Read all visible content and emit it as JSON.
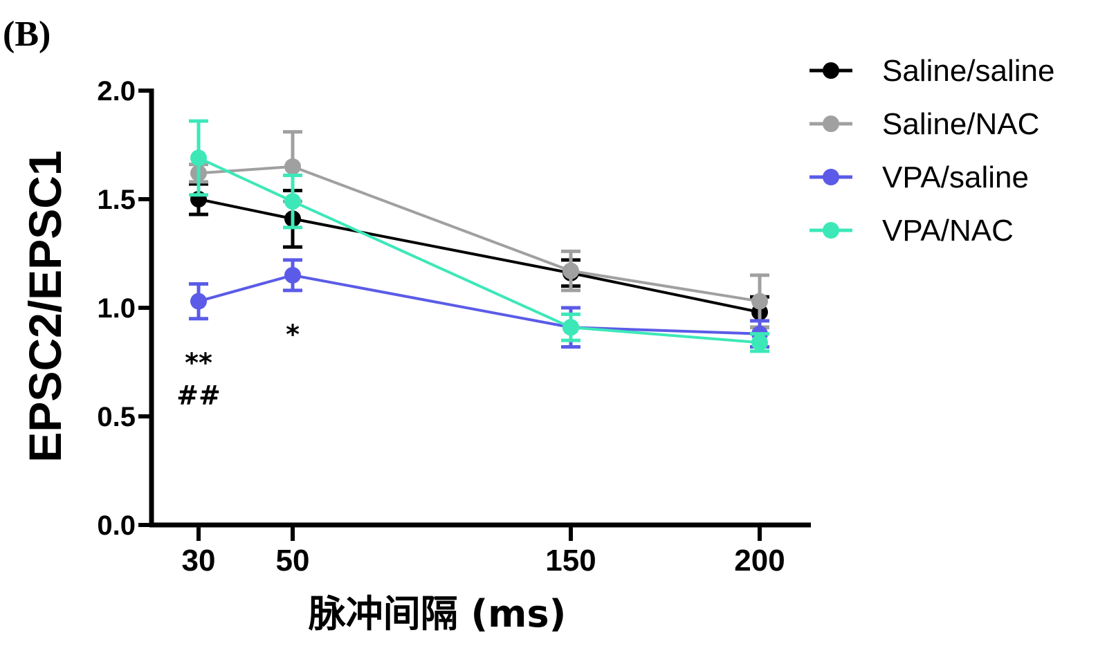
{
  "panel_label": "(B)",
  "chart_data": {
    "type": "line",
    "title": "",
    "xlabel": "脉冲间隔 (ms)",
    "ylabel": "EPSC2/EPSC1",
    "x": [
      30,
      50,
      150,
      200
    ],
    "x_tick_labels": [
      "30",
      "50",
      "150",
      "200"
    ],
    "ylim": [
      0.0,
      2.0
    ],
    "y_ticks": [
      0.0,
      0.5,
      1.0,
      1.5,
      2.0
    ],
    "y_tick_labels": [
      "0.0",
      "0.5",
      "1.0",
      "1.5",
      "2.0"
    ],
    "grid": false,
    "legend_position": "top-right outside",
    "series": [
      {
        "name": "Saline/saline",
        "color": "#000000",
        "values": [
          1.5,
          1.41,
          1.16,
          0.98
        ],
        "errors": [
          0.07,
          0.13,
          0.06,
          0.07
        ]
      },
      {
        "name": "Saline/NAC",
        "color": "#a0a0a0",
        "values": [
          1.62,
          1.65,
          1.17,
          1.03
        ],
        "errors": [
          0.04,
          0.16,
          0.09,
          0.12
        ]
      },
      {
        "name": "VPA/saline",
        "color": "#5b5be8",
        "values": [
          1.03,
          1.15,
          0.91,
          0.88
        ],
        "errors": [
          0.08,
          0.07,
          0.09,
          0.06
        ]
      },
      {
        "name": "VPA/NAC",
        "color": "#3de8b8",
        "values": [
          1.69,
          1.49,
          0.91,
          0.84
        ],
        "errors": [
          0.17,
          0.12,
          0.06,
          0.04
        ]
      }
    ],
    "annotations": [
      {
        "text": "**",
        "x": 30,
        "y": 0.75
      },
      {
        "text": "##",
        "x": 30,
        "y": 0.6
      },
      {
        "text": "*",
        "x": 50,
        "y": 0.88
      }
    ]
  }
}
